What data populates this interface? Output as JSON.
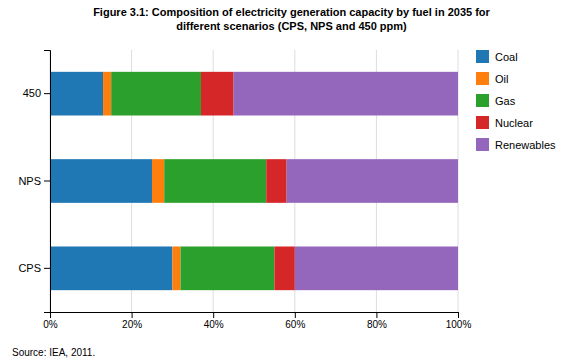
{
  "chart_data": {
    "type": "bar",
    "orientation": "horizontal",
    "stacked": true,
    "title": "Figure 3.1: Composition of electricity generation capacity by fuel in 2035 for\ndifferent scenarios (CPS, NPS and 450 ppm)",
    "annotations": [
      "Source: IEA, 2011."
    ],
    "categories": [
      "CPS",
      "NPS",
      "450"
    ],
    "series": [
      {
        "name": "Coal",
        "values": [
          30,
          25,
          13
        ]
      },
      {
        "name": "Oil",
        "values": [
          2,
          3,
          2
        ]
      },
      {
        "name": "Gas",
        "values": [
          23,
          25,
          22
        ]
      },
      {
        "name": "Nuclear",
        "values": [
          5,
          5,
          8
        ]
      },
      {
        "name": "Renewables",
        "values": [
          40,
          42,
          55
        ]
      }
    ],
    "xlim": [
      0,
      100
    ],
    "xticks": [
      {
        "value": 0,
        "label": "0%"
      },
      {
        "value": 20,
        "label": "20%"
      },
      {
        "value": 40,
        "label": "40%"
      },
      {
        "value": 60,
        "label": "60%"
      },
      {
        "value": 80,
        "label": "80%"
      },
      {
        "value": 100,
        "label": "100%"
      }
    ],
    "grid": true,
    "legend": "right"
  }
}
